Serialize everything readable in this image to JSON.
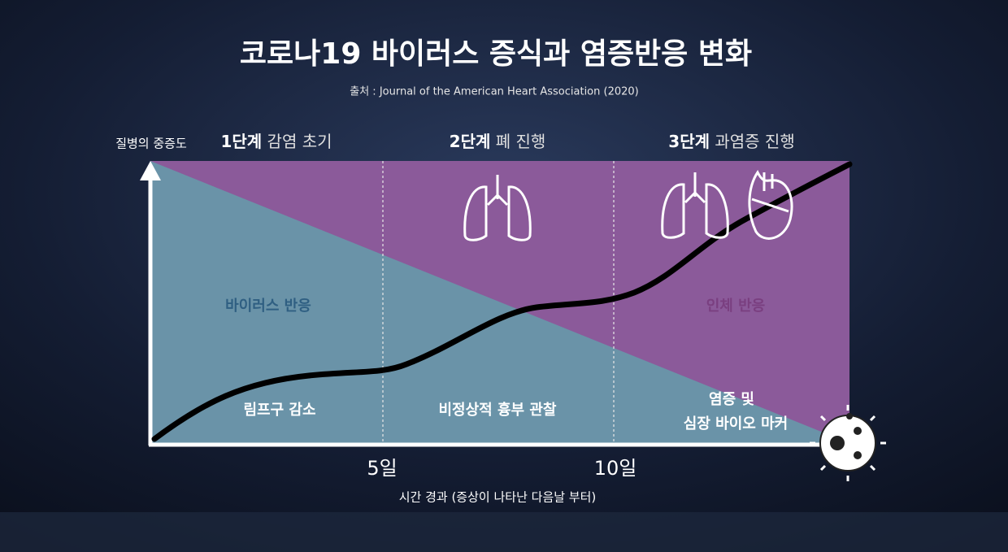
{
  "title": "코로나19 바이러스 증식과 염증반응 변화",
  "source": "출처 : Journal of the American Heart Association (2020)",
  "y_axis_label": "질병의 중증도",
  "x_axis_label": "시간 경과 (증상이 나타난 다음날 부터)",
  "x_ticks": [
    "5일",
    "10일"
  ],
  "stages": [
    {
      "number": "1단계",
      "name": "감염 초기",
      "finding": [
        "림프구 감소"
      ]
    },
    {
      "number": "2단계",
      "name": "폐 진행",
      "finding": [
        "비정상적 흉부 관찰"
      ]
    },
    {
      "number": "3단계",
      "name": "과염증 진행",
      "finding": [
        "염증 및",
        "심장 바이오 마커"
      ]
    }
  ],
  "regions": {
    "virus": "바이러스 반응",
    "host": "인체 반응"
  }
}
